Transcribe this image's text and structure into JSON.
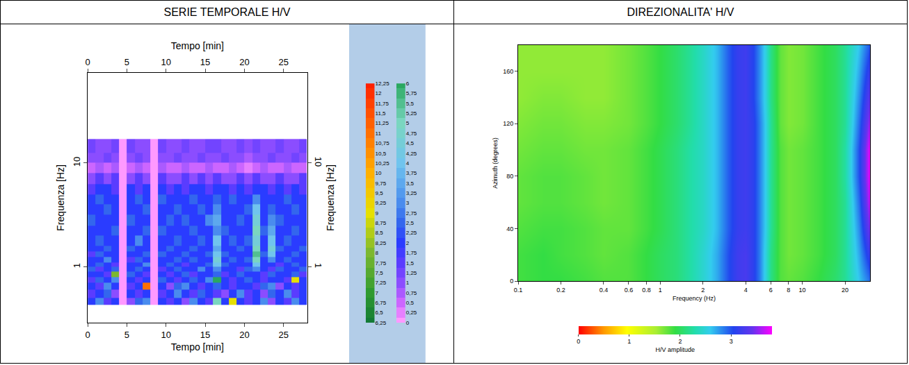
{
  "header": {
    "columns": [
      "SERIE TEMPORALE H/V",
      "DIREZIONALITA' H/V"
    ]
  },
  "chart_data": [
    {
      "type": "heatmap",
      "x_label": "Tempo [min]",
      "y_label": "Frequenza [Hz]",
      "log": "y",
      "xlim": [
        0,
        28
      ],
      "ylim": [
        0.29,
        73.6
      ],
      "xticks": [
        0,
        5,
        10,
        15,
        20,
        25
      ],
      "yticks": [
        1,
        10
      ],
      "x": [
        0,
        1,
        2,
        3,
        4,
        5,
        6,
        7,
        8,
        9,
        10,
        11,
        12,
        13,
        14,
        15,
        16,
        17,
        18,
        19,
        20,
        21,
        22,
        23,
        24,
        25,
        26,
        27,
        28
      ],
      "y": [
        0.43,
        0.5,
        0.6,
        0.7,
        0.8,
        0.9,
        1,
        1.1,
        1.25,
        1.4,
        1.6,
        2,
        2.5,
        3.2,
        4,
        5,
        6.3,
        8,
        10,
        12.5,
        17
      ],
      "cells": [
        [
          2,
          3,
          1.5,
          2,
          0,
          1,
          2.5,
          3,
          0,
          2,
          1.5,
          2,
          1,
          3,
          2,
          1.5,
          5,
          2,
          9,
          2,
          1.5,
          2,
          3,
          1,
          2,
          1.5,
          3,
          2
        ],
        [
          1.5,
          2,
          2.5,
          1,
          0,
          2,
          1.5,
          2,
          0,
          1.5,
          2,
          3,
          2,
          1.5,
          2.5,
          2,
          1.5,
          1,
          2,
          3,
          1.5,
          2,
          1,
          2.5,
          2,
          3,
          1.5,
          2
        ],
        [
          2,
          1.5,
          3,
          2,
          0,
          1.5,
          2,
          11,
          0,
          2,
          1,
          2.5,
          3,
          2,
          1.5,
          2,
          2.5,
          2,
          1.5,
          2,
          2,
          1.5,
          2.5,
          3,
          1,
          2,
          1.5,
          2
        ],
        [
          1.5,
          2.5,
          2,
          3,
          0,
          2,
          1.5,
          2,
          0,
          2.5,
          2,
          1.5,
          2,
          2.5,
          2,
          3,
          6,
          2,
          1.5,
          2,
          2.5,
          2,
          1.5,
          2,
          2,
          1.5,
          9,
          2
        ],
        [
          2,
          2,
          1.5,
          8,
          0,
          2.5,
          2,
          1.5,
          0,
          2,
          1.5,
          2,
          2.5,
          1.5,
          2,
          2,
          2.5,
          1.5,
          2,
          2.5,
          2,
          2,
          1.5,
          2.5,
          2,
          2,
          2.5,
          1.5
        ],
        [
          2.5,
          1.5,
          2,
          2.5,
          0,
          2,
          2.5,
          2,
          0,
          1.5,
          2,
          2.5,
          2,
          2,
          3,
          2,
          3,
          2,
          2,
          1.5,
          2.5,
          3,
          2,
          1.5,
          2.5,
          2,
          2,
          2.5
        ],
        [
          2,
          2.5,
          2,
          1.5,
          0,
          2,
          2,
          3,
          0,
          2,
          2.5,
          2,
          1.5,
          2,
          2,
          2.5,
          4,
          2.5,
          2,
          2,
          2,
          4,
          2,
          2,
          1.5,
          2,
          2.5,
          2
        ],
        [
          2,
          2,
          3,
          2,
          0,
          1.5,
          2.5,
          2,
          0,
          2,
          2,
          2.5,
          2,
          2.5,
          2,
          2,
          4.5,
          2,
          2.5,
          2,
          2.5,
          5,
          2,
          3,
          2,
          2.5,
          2,
          2
        ],
        [
          1.5,
          2.5,
          2,
          2,
          0,
          2,
          2,
          2.5,
          0,
          2.5,
          2,
          2,
          2.5,
          2,
          2,
          2.5,
          4,
          2.5,
          2,
          2,
          2,
          5.5,
          2.5,
          4,
          2,
          2,
          2.5,
          2
        ],
        [
          2,
          2,
          2.5,
          2,
          0,
          2.5,
          2,
          2,
          0,
          2,
          2.5,
          2,
          2,
          2.5,
          2,
          2,
          3.5,
          2,
          2,
          2.5,
          2,
          5,
          2,
          4.5,
          2.5,
          2,
          2,
          2.5
        ],
        [
          2,
          2.5,
          2,
          2,
          0,
          2,
          3,
          2,
          0,
          2,
          2,
          2.5,
          2,
          2,
          2.5,
          2,
          4,
          2,
          2.5,
          2,
          2.5,
          4.5,
          2,
          4,
          2,
          2.5,
          2,
          2
        ],
        [
          2,
          2,
          2,
          2.5,
          0,
          2,
          2,
          2.5,
          0,
          2.5,
          2,
          2,
          2,
          2.5,
          2,
          2,
          3,
          2.5,
          2,
          2,
          2,
          5,
          2.5,
          3.5,
          2,
          2,
          2.5,
          2
        ],
        [
          2.5,
          2,
          2,
          2,
          0,
          2.5,
          2,
          2,
          0,
          2,
          2.5,
          2,
          2.5,
          2,
          2,
          3,
          3.5,
          2,
          2,
          2.5,
          2,
          4.5,
          2,
          3,
          2.5,
          2,
          2,
          2
        ],
        [
          2,
          2,
          2.5,
          2,
          0,
          2,
          2,
          2.5,
          0,
          2,
          2,
          2.5,
          2,
          2,
          2.5,
          2,
          3,
          2,
          2,
          2,
          2.5,
          4,
          2,
          2.5,
          2,
          2,
          2.5,
          2
        ],
        [
          2,
          2.5,
          2,
          2,
          0,
          2,
          2.5,
          2,
          0,
          2.5,
          2,
          2,
          2,
          2.5,
          2,
          2,
          2.5,
          2,
          2.5,
          2,
          2,
          3,
          2,
          2,
          2,
          2.5,
          2,
          2
        ],
        [
          1.5,
          2,
          2,
          1.5,
          0,
          2,
          1.5,
          2,
          0,
          2,
          1.5,
          2,
          1.5,
          2,
          2,
          1.5,
          2,
          2,
          1.5,
          2,
          1.5,
          2,
          2,
          1.5,
          2,
          1.5,
          2,
          1.5
        ],
        [
          1,
          1.5,
          1,
          1.5,
          0,
          1,
          1.5,
          1,
          0,
          1.5,
          1,
          1,
          1.5,
          1,
          1.5,
          1,
          1.5,
          1,
          1,
          1.5,
          1,
          1.5,
          1,
          1,
          1.5,
          1,
          1,
          1.5
        ],
        [
          0.5,
          0.75,
          0.5,
          0.75,
          0,
          0.5,
          0.75,
          0.5,
          0,
          0.75,
          0.5,
          0.5,
          0.75,
          0.5,
          0.5,
          0.75,
          0.5,
          0.5,
          0.75,
          0.5,
          0.25,
          0.5,
          0.75,
          0.5,
          0.5,
          0.75,
          0.5,
          0.5
        ],
        [
          1,
          1,
          1.25,
          1,
          0,
          1,
          1.25,
          1,
          0,
          1,
          1,
          1.25,
          1,
          1,
          1.25,
          1,
          1,
          1.25,
          1,
          1,
          0.75,
          1,
          1,
          1.25,
          1,
          1,
          1.25,
          1
        ],
        [
          1.25,
          1,
          1,
          1.25,
          0,
          1.25,
          1,
          1,
          0,
          1.25,
          1,
          1,
          1.25,
          1,
          1,
          1.25,
          1.25,
          1,
          1,
          1.25,
          1,
          1.25,
          1,
          1,
          1.25,
          1,
          1,
          1.25
        ]
      ],
      "colorbar": {
        "zlim": [
          0,
          12.25
        ],
        "ticks": [
          0,
          {
            "value": 0.25,
            "label": "0,25"
          },
          {
            "value": 0.5,
            "label": "0,5"
          },
          {
            "value": 0.75,
            "label": "0,75"
          },
          1,
          {
            "value": 1.25,
            "label": "1,25"
          },
          {
            "value": 1.5,
            "label": "1,5"
          },
          {
            "value": 1.75,
            "label": "1,75"
          },
          2,
          {
            "value": 2.25,
            "label": "2,25"
          },
          {
            "value": 2.5,
            "label": "2,5"
          },
          {
            "value": 2.75,
            "label": "2,75"
          },
          3,
          {
            "value": 3.25,
            "label": "3,25"
          },
          {
            "value": 3.5,
            "label": "3,5"
          },
          {
            "value": 3.75,
            "label": "3,75"
          },
          4,
          {
            "value": 4.25,
            "label": "4,25"
          },
          {
            "value": 4.5,
            "label": "4,5"
          },
          {
            "value": 4.75,
            "label": "4,75"
          },
          5,
          {
            "value": 5.25,
            "label": "5,25"
          },
          {
            "value": 5.5,
            "label": "5,5"
          },
          {
            "value": 5.75,
            "label": "5,75"
          },
          6,
          {
            "value": 6.25,
            "label": "6,25"
          },
          {
            "value": 6.5,
            "label": "6,5"
          },
          {
            "value": 6.75,
            "label": "6,75"
          },
          7,
          {
            "value": 7.25,
            "label": "7,25"
          },
          {
            "value": 7.5,
            "label": "7,5"
          },
          {
            "value": 7.75,
            "label": "7,75"
          },
          8,
          {
            "value": 8.25,
            "label": "8,25"
          },
          {
            "value": 8.5,
            "label": "8,5"
          },
          {
            "value": 8.75,
            "label": "8,75"
          },
          9,
          {
            "value": 9.25,
            "label": "9,25"
          },
          {
            "value": 9.5,
            "label": "9,5"
          },
          {
            "value": 9.75,
            "label": "9,75"
          },
          10,
          {
            "value": 10.25,
            "label": "10,25"
          },
          {
            "value": 10.5,
            "label": "10,5"
          },
          {
            "value": 10.75,
            "label": "10,75"
          },
          11,
          {
            "value": 11.25,
            "label": "11,25"
          },
          {
            "value": 11.5,
            "label": "11,5"
          },
          {
            "value": 11.75,
            "label": "11,75"
          },
          12,
          {
            "value": 12.25,
            "label": "12,25"
          }
        ]
      }
    },
    {
      "type": "heatmap",
      "x_label": "Frequency (Hz)",
      "y_label": "Azimuth (degrees)",
      "log": "x",
      "xlim": [
        0.1,
        30
      ],
      "ylim": [
        0,
        180
      ],
      "xticks": [
        0.1,
        0.2,
        0.4,
        0.6,
        0.8,
        1,
        2,
        4,
        6,
        8,
        10,
        20
      ],
      "yticks": [
        0,
        40,
        80,
        120,
        160
      ],
      "x": [
        0.1,
        0.15,
        0.2,
        0.3,
        0.4,
        0.6,
        0.8,
        1,
        1.3,
        1.6,
        2,
        2.5,
        3,
        3.5,
        4,
        4.5,
        5,
        5.5,
        6,
        7,
        8,
        10,
        13,
        17,
        20,
        25,
        30
      ],
      "y": [
        0,
        20,
        40,
        60,
        80,
        100,
        120,
        140,
        160,
        180
      ],
      "cells": [
        [
          1.85,
          1.9,
          1.9,
          1.85,
          1.8,
          1.8,
          1.9,
          2.0,
          2.1,
          2.25,
          2.45,
          2.7,
          3.0,
          3.2,
          3.25,
          3.1,
          2.85,
          2.5,
          2.15,
          1.8,
          1.75,
          1.8,
          1.9,
          2.05,
          2.2,
          2.6,
          2.9
        ],
        [
          1.85,
          1.9,
          1.85,
          1.8,
          1.75,
          1.8,
          1.9,
          2.0,
          2.1,
          2.25,
          2.45,
          2.7,
          3.0,
          3.2,
          3.25,
          3.1,
          2.85,
          2.5,
          2.15,
          1.8,
          1.7,
          1.75,
          1.85,
          2.0,
          2.2,
          2.7,
          3.2
        ],
        [
          1.8,
          1.85,
          1.85,
          1.8,
          1.75,
          1.75,
          1.85,
          1.95,
          2.1,
          2.25,
          2.4,
          2.65,
          2.95,
          3.15,
          3.2,
          3.1,
          2.85,
          2.55,
          2.2,
          1.8,
          1.7,
          1.75,
          1.85,
          2.0,
          2.2,
          2.8,
          3.5
        ],
        [
          1.75,
          1.8,
          1.8,
          1.75,
          1.7,
          1.75,
          1.85,
          1.95,
          2.1,
          2.25,
          2.4,
          2.65,
          2.95,
          3.15,
          3.2,
          3.1,
          2.85,
          2.55,
          2.2,
          1.8,
          1.7,
          1.75,
          1.85,
          2.0,
          2.2,
          2.9,
          3.7
        ],
        [
          1.75,
          1.8,
          1.8,
          1.75,
          1.7,
          1.75,
          1.85,
          1.95,
          2.1,
          2.25,
          2.4,
          2.65,
          2.95,
          3.15,
          3.2,
          3.1,
          2.85,
          2.55,
          2.2,
          1.8,
          1.7,
          1.75,
          1.85,
          2.0,
          2.25,
          3.0,
          3.8
        ],
        [
          1.7,
          1.75,
          1.75,
          1.7,
          1.7,
          1.75,
          1.85,
          1.95,
          2.1,
          2.25,
          2.4,
          2.65,
          2.95,
          3.15,
          3.2,
          3.1,
          2.85,
          2.55,
          2.2,
          1.8,
          1.7,
          1.75,
          1.85,
          2.0,
          2.25,
          3.0,
          3.8
        ],
        [
          1.65,
          1.7,
          1.7,
          1.65,
          1.65,
          1.7,
          1.8,
          1.9,
          2.05,
          2.2,
          2.4,
          2.65,
          2.95,
          3.15,
          3.2,
          3.1,
          2.85,
          2.55,
          2.2,
          1.75,
          1.65,
          1.7,
          1.85,
          2.0,
          2.2,
          2.9,
          3.6
        ],
        [
          1.6,
          1.65,
          1.65,
          1.6,
          1.6,
          1.7,
          1.8,
          1.9,
          2.05,
          2.2,
          2.4,
          2.65,
          2.95,
          3.15,
          3.2,
          3.05,
          2.8,
          2.5,
          2.15,
          1.75,
          1.65,
          1.7,
          1.85,
          2.0,
          2.2,
          2.8,
          3.4
        ],
        [
          1.6,
          1.6,
          1.6,
          1.6,
          1.6,
          1.7,
          1.8,
          1.9,
          2.05,
          2.2,
          2.4,
          2.65,
          2.95,
          3.15,
          3.2,
          3.05,
          2.8,
          2.5,
          2.15,
          1.75,
          1.65,
          1.7,
          1.85,
          2.0,
          2.2,
          2.7,
          3.2
        ],
        [
          1.6,
          1.6,
          1.6,
          1.6,
          1.6,
          1.7,
          1.8,
          1.9,
          2.05,
          2.2,
          2.4,
          2.65,
          2.95,
          3.15,
          3.2,
          3.05,
          2.8,
          2.5,
          2.15,
          1.75,
          1.65,
          1.7,
          1.85,
          2.0,
          2.2,
          2.6,
          3.0
        ]
      ],
      "colorbar": {
        "title": "H/V amplitude",
        "zlim": [
          0,
          3.8
        ],
        "ticks": [
          0,
          1,
          2,
          3
        ]
      }
    }
  ]
}
